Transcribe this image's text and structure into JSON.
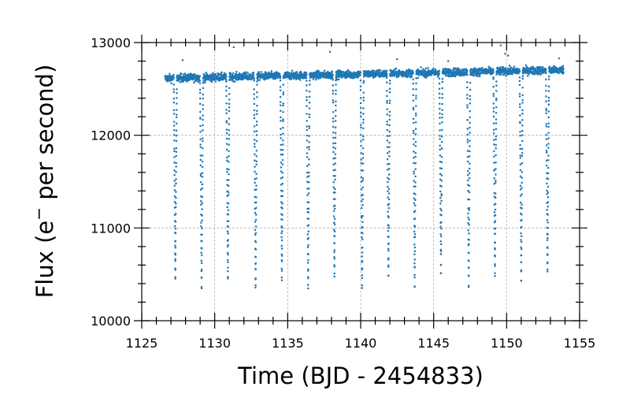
{
  "chart_data": {
    "type": "scatter",
    "title": "",
    "xlabel": "Time (BJD - 2454833)",
    "ylabel_main": "Flux (e",
    "ylabel_sup": "−",
    "ylabel_rest": " per second)",
    "xlim": [
      1125,
      1155
    ],
    "ylim": [
      10000,
      13000
    ],
    "x_ticks": [
      1125,
      1130,
      1135,
      1140,
      1145,
      1150,
      1155
    ],
    "y_ticks": [
      10000,
      11000,
      12000,
      13000
    ],
    "x_minor_step": 1,
    "y_minor_step": 200,
    "grid": true,
    "marker_color": "#1f77b4",
    "series": [
      {
        "time_range": [
          1126.6,
          1153.9
        ],
        "baseline_start": 12615,
        "baseline_end": 12705,
        "transits": [
          {
            "time": 1127.3,
            "min_flux": 10400
          },
          {
            "time": 1129.1,
            "min_flux": 10300
          },
          {
            "time": 1130.9,
            "min_flux": 10400
          },
          {
            "time": 1132.8,
            "min_flux": 10290
          },
          {
            "time": 1134.6,
            "min_flux": 10400
          },
          {
            "time": 1136.4,
            "min_flux": 10310
          },
          {
            "time": 1138.2,
            "min_flux": 10440
          },
          {
            "time": 1140.1,
            "min_flux": 10300
          },
          {
            "time": 1141.9,
            "min_flux": 10440
          },
          {
            "time": 1143.7,
            "min_flux": 10310
          },
          {
            "time": 1145.5,
            "min_flux": 10460
          },
          {
            "time": 1147.4,
            "min_flux": 10310
          },
          {
            "time": 1149.2,
            "min_flux": 10450
          },
          {
            "time": 1151.0,
            "min_flux": 10370
          },
          {
            "time": 1152.8,
            "min_flux": 10470
          }
        ],
        "outliers": [
          {
            "time": 1127.8,
            "flux": 12810
          },
          {
            "time": 1131.3,
            "flux": 12950
          },
          {
            "time": 1137.9,
            "flux": 12900
          },
          {
            "time": 1142.5,
            "flux": 12820
          },
          {
            "time": 1146.0,
            "flux": 12800
          },
          {
            "time": 1149.6,
            "flux": 12970
          },
          {
            "time": 1149.9,
            "flux": 12880
          },
          {
            "time": 1150.1,
            "flux": 12860
          },
          {
            "time": 1153.6,
            "flux": 12830
          }
        ]
      }
    ]
  }
}
